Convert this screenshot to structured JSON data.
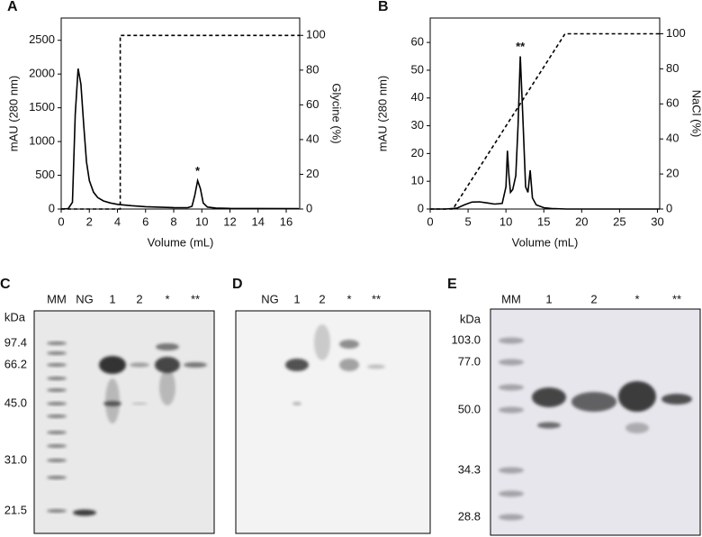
{
  "chart_data": [
    {
      "type": "line",
      "panel": "A",
      "xlabel": "Volume (mL)",
      "ylabel": "mAU (280 nm)",
      "y2label": "Glycine (%)",
      "xlim": [
        0,
        16.96
      ],
      "xticks": [
        0,
        2,
        4,
        6,
        8,
        10,
        12,
        14,
        16
      ],
      "ylim": [
        0,
        2830
      ],
      "yticks": [
        0,
        500,
        1000,
        1500,
        2000,
        2500
      ],
      "y2lim": [
        0,
        110
      ],
      "y2ticks": [
        0,
        20,
        40,
        60,
        80,
        100
      ],
      "series": [
        {
          "color": "#000000",
          "line_style": "solid",
          "x": [
            0,
            0.5,
            0.8,
            1.0,
            1.2,
            1.4,
            1.6,
            1.8,
            2.0,
            2.3,
            2.6,
            3.0,
            3.5,
            4,
            5,
            6,
            7,
            8,
            9,
            9.3,
            9.5,
            9.7,
            9.9,
            10.1,
            10.4,
            11,
            12,
            14,
            16.9
          ],
          "values": [
            0,
            5,
            100,
            1400,
            2080,
            1850,
            1250,
            700,
            420,
            250,
            170,
            120,
            90,
            70,
            50,
            35,
            28,
            22,
            20,
            40,
            200,
            420,
            300,
            90,
            30,
            15,
            10,
            8,
            6
          ]
        },
        {
          "color": "#000000",
          "line_style": "dashed",
          "axis": "y2",
          "x": [
            0,
            4.2,
            4.2,
            16.96
          ],
          "values": [
            0,
            0,
            100,
            100
          ]
        }
      ],
      "annotations": [
        {
          "text": "*",
          "x": 9.7,
          "y": 420
        }
      ]
    },
    {
      "type": "line",
      "panel": "B",
      "xlabel": "Volume (mL)",
      "ylabel": "mAU (280 nm)",
      "y2label": "NaCl (%)",
      "xlim": [
        0,
        30.3
      ],
      "xticks": [
        0,
        5,
        10,
        15,
        20,
        25,
        30
      ],
      "ylim": [
        0,
        68.8
      ],
      "yticks": [
        0,
        10,
        20,
        30,
        40,
        50,
        60
      ],
      "y2lim": [
        0,
        109
      ],
      "y2ticks": [
        0,
        20,
        40,
        60,
        80,
        100
      ],
      "series": [
        {
          "color": "#000000",
          "line_style": "solid",
          "x": [
            0,
            2,
            3.5,
            4.5,
            5.5,
            6.5,
            7.5,
            8.5,
            9.5,
            10,
            10.2,
            10.4,
            10.6,
            10.9,
            11.3,
            11.6,
            11.9,
            12.2,
            12.6,
            12.9,
            13.2,
            13.5,
            14,
            15,
            16,
            18,
            30.3
          ],
          "values": [
            0,
            0,
            0.3,
            1.5,
            2.5,
            2.6,
            2.2,
            1.8,
            2,
            8,
            21,
            12,
            6,
            7,
            12,
            30,
            55,
            35,
            8,
            6,
            14,
            4,
            1.5,
            0.5,
            0.2,
            0,
            0
          ]
        },
        {
          "color": "#000000",
          "line_style": "dashed",
          "axis": "y2",
          "x": [
            0,
            3,
            17.8,
            30.3
          ],
          "values": [
            0,
            0,
            100,
            100
          ]
        }
      ],
      "annotations": [
        {
          "text": "**",
          "x": 11.9,
          "y": 55
        }
      ]
    }
  ],
  "gels": [
    {
      "panel": "C",
      "unit": "kDa",
      "lanes": [
        "MM",
        "NG",
        "1",
        "2",
        "*",
        "**"
      ],
      "markers": [
        "97.4",
        "66.2",
        "45.0",
        "31.0",
        "21.5"
      ]
    },
    {
      "panel": "D",
      "lanes": [
        "NG",
        "1",
        "2",
        "*",
        "**"
      ]
    },
    {
      "panel": "E",
      "unit": "kDa",
      "lanes": [
        "MM",
        "1",
        "2",
        "*",
        "**"
      ],
      "markers": [
        "103.0",
        "77.0",
        "50.0",
        "34.3",
        "28.8"
      ]
    }
  ]
}
